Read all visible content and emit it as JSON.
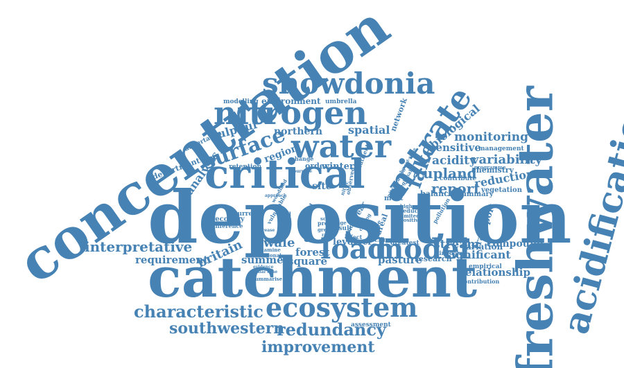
{
  "cloud": {
    "words": [
      "concentration",
      "deposition",
      "catchment",
      "freshwater",
      "acidification",
      "nitrogen",
      "snowdonia",
      "water",
      "critical",
      "nitrate",
      "ecosystem",
      "load",
      "model",
      "surface",
      "lake",
      "characteristic",
      "southwestern",
      "redundancy",
      "improvement",
      "interpretative",
      "biological",
      "monitoring",
      "variability",
      "acidity",
      "upland",
      "report",
      "reduction",
      "sensitive",
      "britain",
      "analysis",
      "sulphur",
      "spatial",
      "region",
      "northern",
      "wale",
      "relationship",
      "significant",
      "stream",
      "pasture",
      "transport",
      "compound",
      "requirement",
      "summer",
      "forest",
      "square",
      "level",
      "river",
      "great",
      "winter",
      "site",
      "network",
      "environment",
      "modelling",
      "umbrella",
      "department",
      "undertaken",
      "variation",
      "vegetation",
      "research",
      "assessment",
      "kingdom",
      "empirical",
      "contribution",
      "summary",
      "chemistry",
      "programme",
      "contribute",
      "balance",
      "management",
      "recovery",
      "difference",
      "retention",
      "order",
      "change",
      "current",
      "vulnerable",
      "year",
      "areal",
      "result",
      "summarise",
      "seasonal",
      "examine",
      "greatest",
      "climatic",
      "microbe",
      "project",
      "greater",
      "most",
      "higher",
      "reduce",
      "limited",
      "positive",
      "effect",
      "range",
      "scale",
      "study",
      "nutrient",
      "cycling",
      "pollution",
      "nitrification",
      "nitric",
      "soil",
      "grid",
      "observed",
      "regional",
      "purpose",
      "catchment-scale",
      "woodland",
      "approach",
      "increase",
      "time",
      "similar",
      "evidence",
      "rate",
      "level"
    ],
    "color": "#4682b4"
  }
}
